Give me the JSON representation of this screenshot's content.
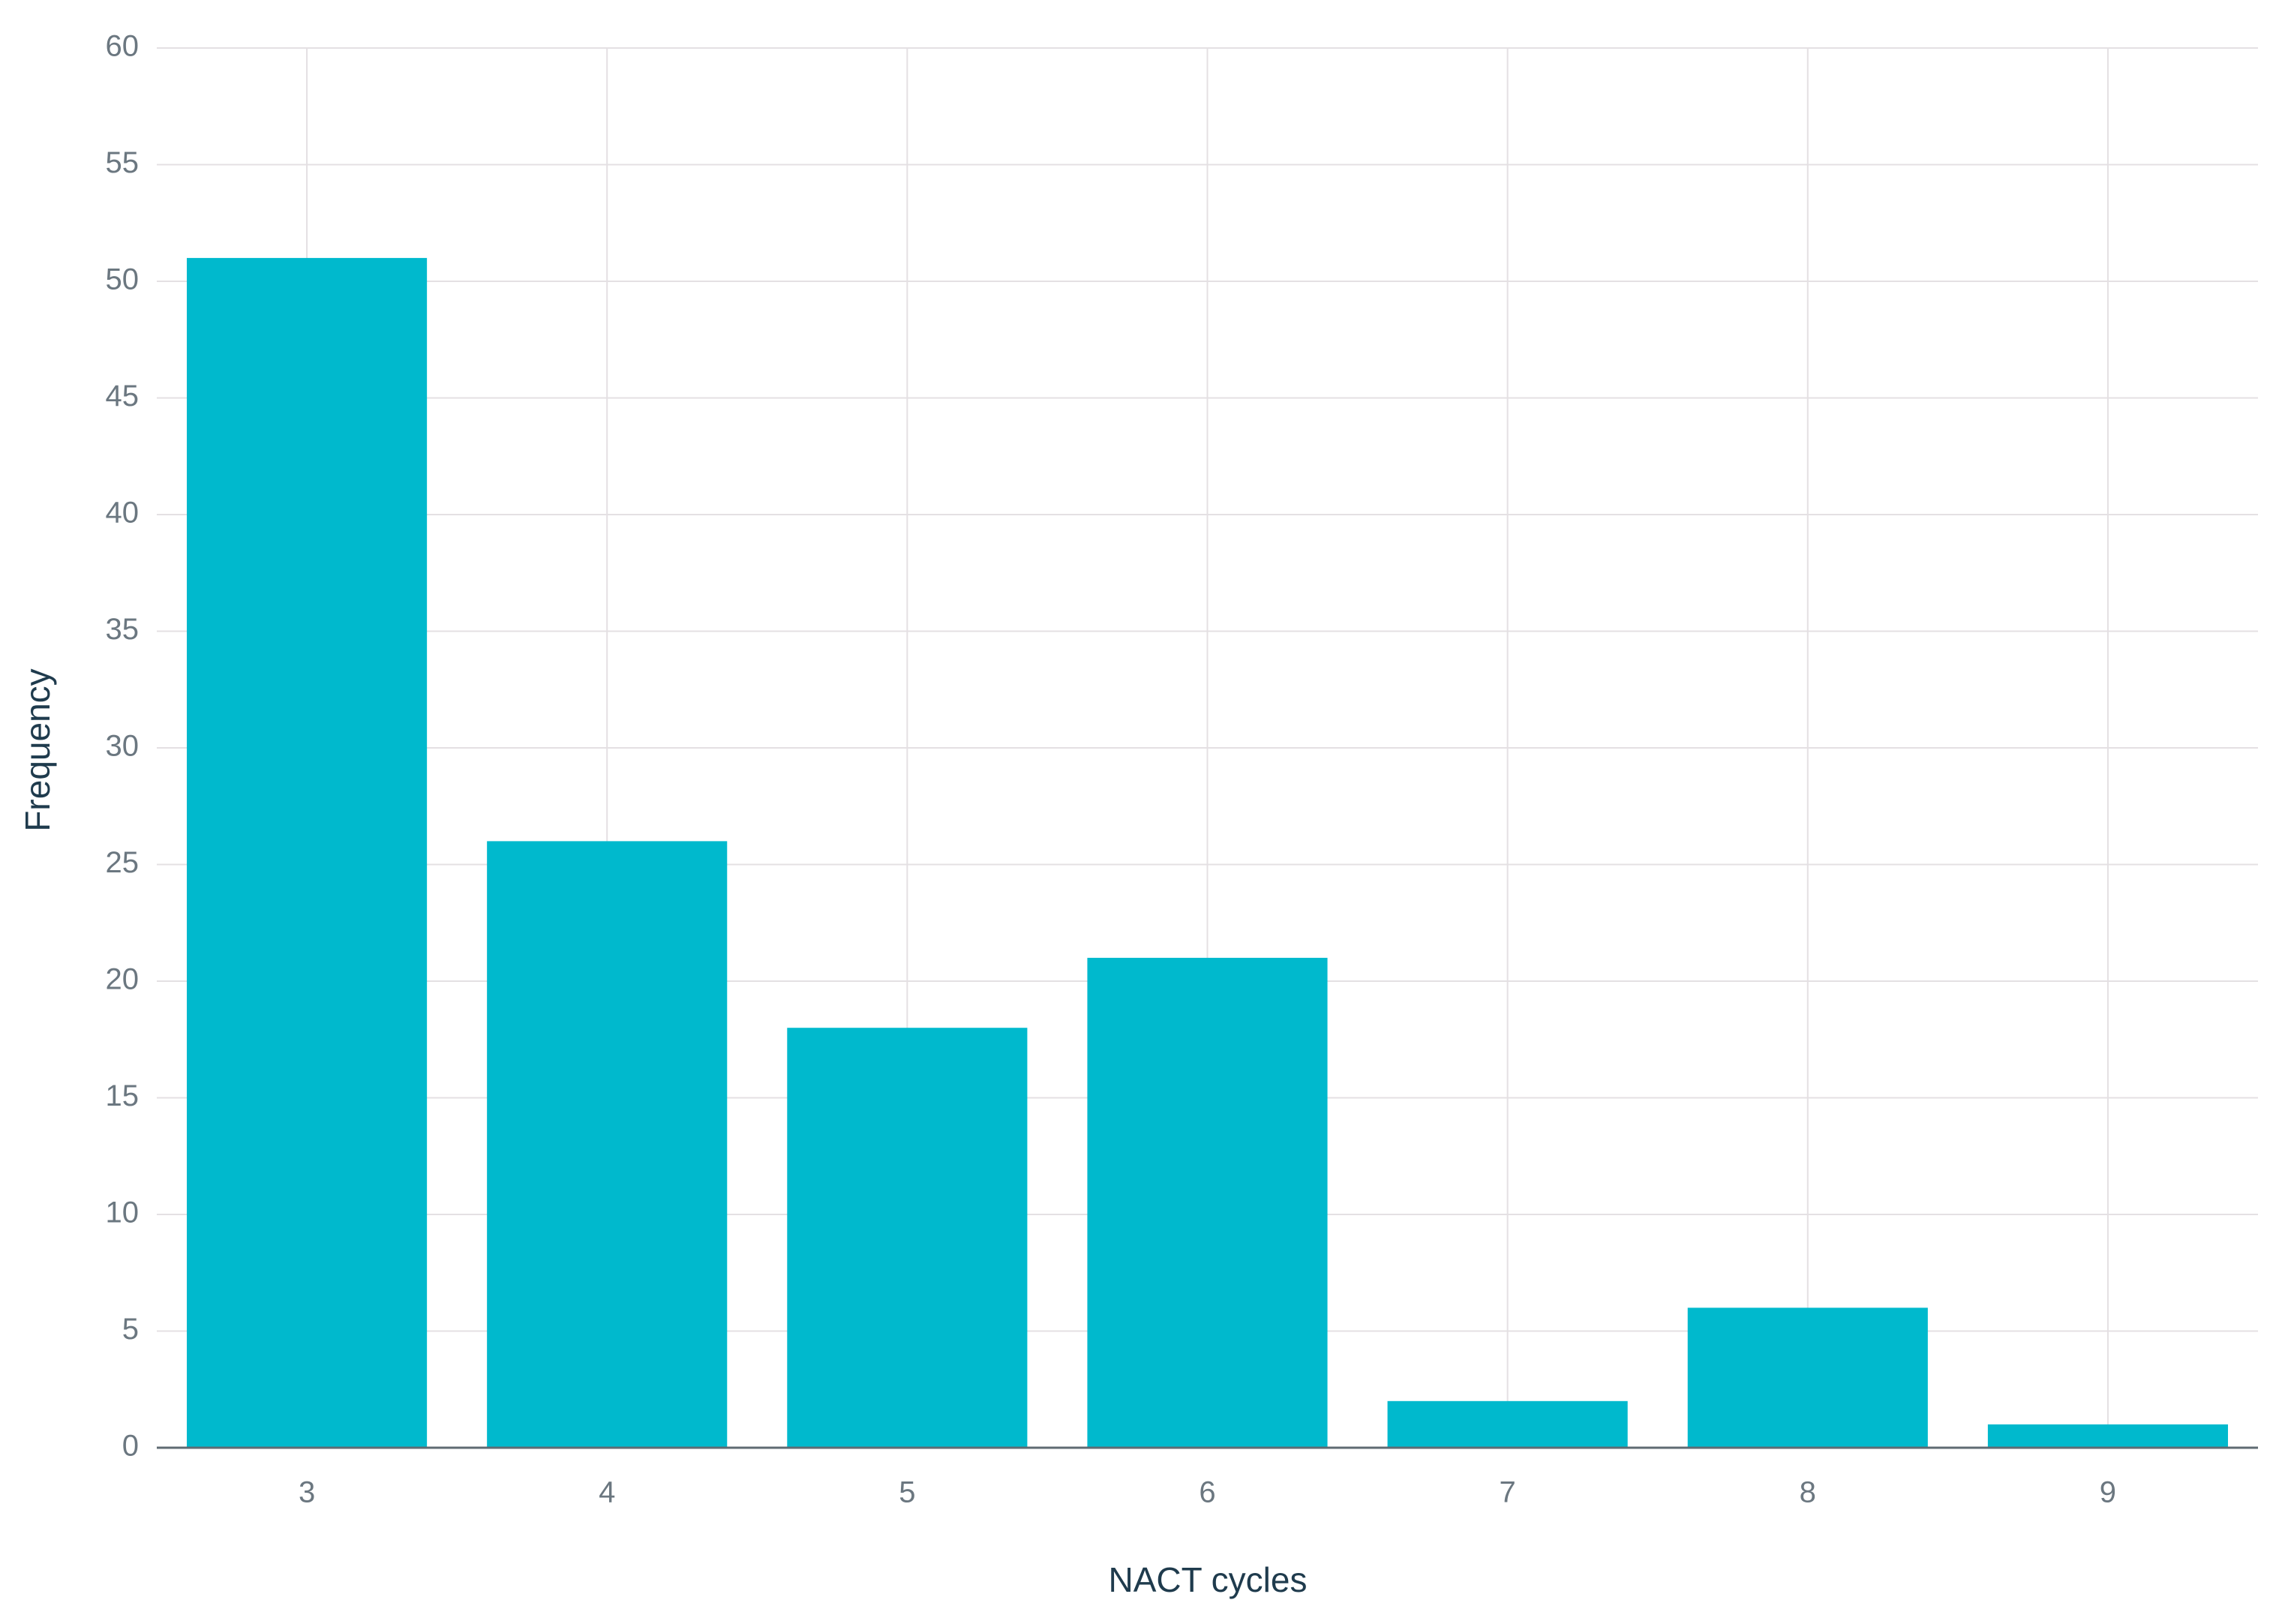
{
  "chart_data": {
    "type": "bar",
    "x_label": "NACT cycles",
    "y_label": "Frequency",
    "categories": [
      "3",
      "4",
      "5",
      "6",
      "7",
      "8",
      "9"
    ],
    "values": [
      51,
      26,
      18,
      21,
      2,
      6,
      1
    ],
    "color": "#00b9cd",
    "ylim": [
      0,
      60
    ],
    "yticks": [
      0,
      5,
      10,
      15,
      20,
      25,
      30,
      35,
      40,
      45,
      50,
      55,
      60
    ],
    "grid": true
  }
}
